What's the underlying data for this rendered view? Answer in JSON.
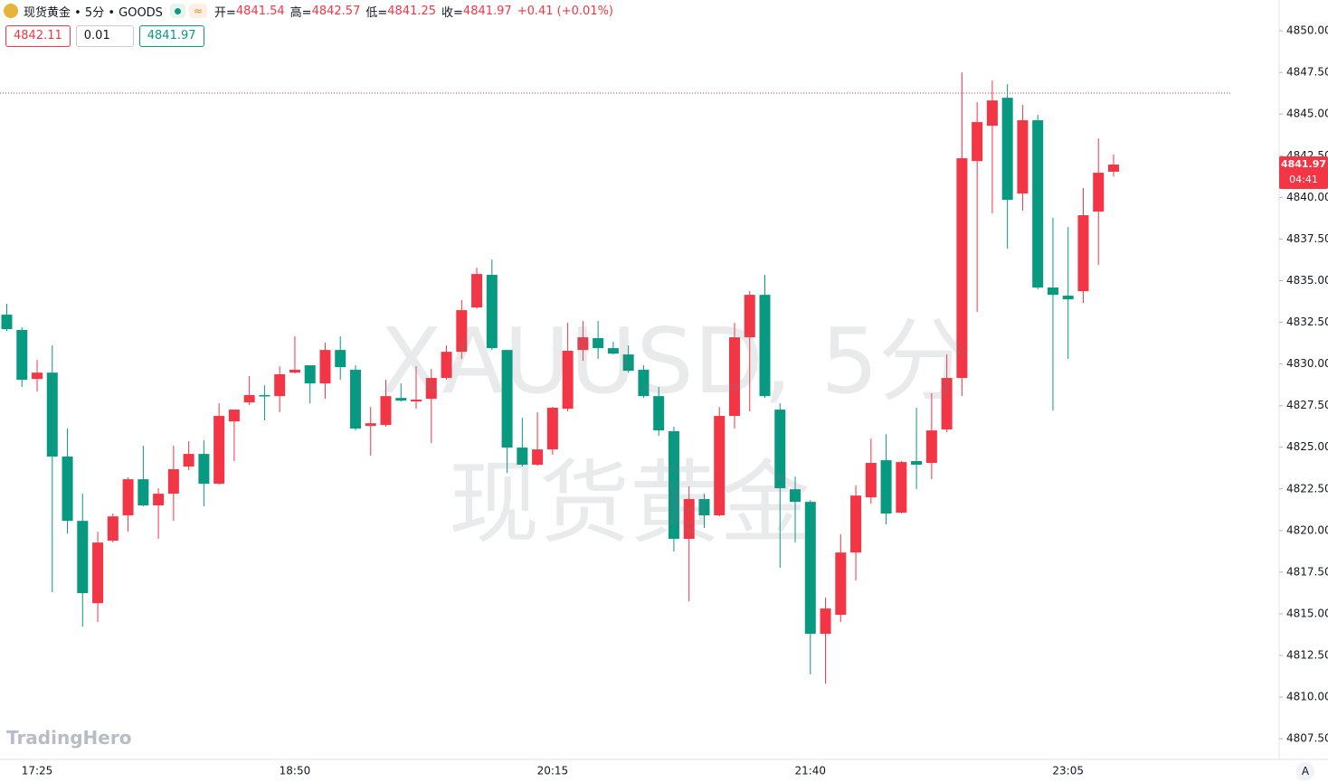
{
  "chart_data": {
    "type": "candlestick",
    "title": "现货黄金 • 5分 • GOODS",
    "ohlc_labels": [
      "开=",
      "高=",
      "低=",
      "收="
    ],
    "change": "+0.41 (+0.01%)",
    "trade_panel": {
      "sell": "4842.11",
      "spread": "0.01",
      "buy": "4841.97"
    },
    "countdown": "04:41",
    "watermark": [
      "XAUUSD, 5分",
      "现货黄金"
    ],
    "logo": "TradingHero",
    "button": "A",
    "up_color": "#f23645",
    "down_color": "#089981",
    "price_line": 4846.26,
    "categories": [
      null,
      null,
      "17:25",
      null,
      null,
      null,
      null,
      null,
      null,
      null,
      null,
      null,
      null,
      null,
      null,
      null,
      null,
      null,
      null,
      "18:50",
      null,
      null,
      null,
      null,
      null,
      null,
      null,
      null,
      null,
      null,
      null,
      null,
      null,
      null,
      null,
      null,
      "20:15",
      null,
      null,
      null,
      null,
      null,
      null,
      null,
      null,
      null,
      null,
      null,
      null,
      null,
      null,
      null,
      null,
      "21:40",
      null,
      null,
      null,
      null,
      null,
      null,
      null,
      null,
      null,
      null,
      null,
      null,
      null,
      null,
      null,
      null,
      "23:05",
      null,
      null,
      null
    ],
    "open": [
      4832.96,
      4832.04,
      4829.1,
      4829.48,
      4824.44,
      4820.58,
      4815.64,
      4819.39,
      4820.91,
      4823.08,
      4821.51,
      4822.21,
      4823.84,
      4824.6,
      4822.81,
      4826.55,
      4827.69,
      4828.13,
      4828.07,
      4829.48,
      4829.92,
      4828.83,
      4830.84,
      4829.65,
      4826.28,
      4826.34,
      4827.96,
      4827.75,
      4827.91,
      4829.16,
      4830.73,
      4833.39,
      4835.35,
      4830.84,
      4824.98,
      4823.95,
      4824.87,
      4827.31,
      4830.84,
      4831.55,
      4830.95,
      4830.57,
      4829.65,
      4828.07,
      4825.96,
      4819.5,
      4821.89,
      4820.91,
      4826.88,
      4831.6,
      4834.15,
      4827.26,
      4822.48,
      4821.72,
      4813.8,
      4814.94,
      4818.68,
      4821.99,
      4824.22,
      4821.07,
      4824.17,
      4824.06,
      4826.07,
      4829.16,
      4842.18,
      4844.3,
      4845.98,
      4840.23,
      4844.63,
      4834.59,
      4834.1,
      4834.37,
      4839.15,
      4841.54
    ],
    "high": [
      4833.61,
      4832.2,
      4830.24,
      4831.11,
      4826.12,
      4822.21,
      4819.93,
      4821.02,
      4823.19,
      4825.09,
      4822.54,
      4825.09,
      4825.36,
      4825.41,
      4827.64,
      4827.26,
      4829.27,
      4828.72,
      4829.86,
      4831.66,
      4829.92,
      4831.28,
      4831.66,
      4829.92,
      4827.42,
      4829.05,
      4828.83,
      4829.86,
      4829.7,
      4831.11,
      4833.83,
      4835.78,
      4836.27,
      4830.84,
      4826.77,
      4827.1,
      4827.42,
      4832.47,
      4832.58,
      4832.58,
      4831.33,
      4831.11,
      4829.92,
      4828.62,
      4826.23,
      4822.65,
      4822.21,
      4827.42,
      4832.47,
      4834.37,
      4835.35,
      4827.64,
      4823.24,
      4821.83,
      4815.97,
      4819.77,
      4822.7,
      4825.52,
      4825.79,
      4824.17,
      4827.37,
      4828.24,
      4830.57,
      4847.5,
      4845.71,
      4847.01,
      4846.8,
      4845.55,
      4844.95,
      4838.77,
      4838.22,
      4840.56,
      4843.54,
      4842.57
    ],
    "low": [
      4831.98,
      4828.62,
      4828.34,
      4816.3,
      4819.82,
      4814.23,
      4814.5,
      4819.28,
      4819.93,
      4821.45,
      4819.5,
      4820.58,
      4823.62,
      4821.45,
      4822.75,
      4824.17,
      4827.53,
      4826.61,
      4827.1,
      4829.43,
      4827.64,
      4827.91,
      4829.05,
      4826.01,
      4824.49,
      4826.23,
      4827.75,
      4827.31,
      4825.25,
      4829.05,
      4830.3,
      4833.34,
      4830.84,
      4823.46,
      4823.84,
      4823.89,
      4824.55,
      4827.15,
      4830.19,
      4830.3,
      4830.57,
      4829.48,
      4827.96,
      4825.69,
      4818.74,
      4815.75,
      4820.15,
      4820.85,
      4826.12,
      4827.15,
      4827.96,
      4817.76,
      4819.28,
      4811.36,
      4810.81,
      4814.5,
      4817.0,
      4821.61,
      4820.37,
      4821.02,
      4822.48,
      4823.08,
      4825.9,
      4828.07,
      4833.12,
      4839.04,
      4836.92,
      4839.2,
      4834.48,
      4827.2,
      4830.3,
      4833.66,
      4835.94,
      4841.25
    ],
    "close": [
      4832.09,
      4829.05,
      4829.48,
      4824.44,
      4820.58,
      4816.24,
      4819.28,
      4820.85,
      4823.08,
      4821.51,
      4822.21,
      4823.68,
      4824.6,
      4822.81,
      4826.88,
      4827.26,
      4828.13,
      4828.07,
      4829.38,
      4829.65,
      4828.83,
      4830.84,
      4829.81,
      4826.12,
      4826.44,
      4828.07,
      4827.8,
      4827.86,
      4829.16,
      4830.73,
      4833.23,
      4835.4,
      4830.95,
      4824.98,
      4823.95,
      4824.87,
      4827.37,
      4830.79,
      4831.6,
      4830.95,
      4830.62,
      4829.59,
      4828.07,
      4826.01,
      4819.5,
      4821.89,
      4820.91,
      4826.88,
      4831.6,
      4834.15,
      4828.07,
      4822.54,
      4821.72,
      4813.8,
      4815.32,
      4818.68,
      4822.1,
      4824.06,
      4821.02,
      4824.11,
      4823.95,
      4826.01,
      4829.16,
      4842.35,
      4844.52,
      4845.82,
      4839.85,
      4844.63,
      4834.59,
      4834.15,
      4833.88,
      4838.93,
      4841.48,
      4841.97
    ],
    "ylim": [
      4806.26,
      4851.85
    ],
    "yticks": [
      {
        "value": 4807.5,
        "label": "4807.50"
      },
      {
        "value": 4810,
        "label": "4810.00"
      },
      {
        "value": 4812.5,
        "label": "4812.50"
      },
      {
        "value": 4815,
        "label": "4815.00"
      },
      {
        "value": 4817.5,
        "label": "4817.50"
      },
      {
        "value": 4820,
        "label": "4820.00"
      },
      {
        "value": 4822.5,
        "label": "4822.50"
      },
      {
        "value": 4825,
        "label": "4825.00"
      },
      {
        "value": 4827.5,
        "label": "4827.50"
      },
      {
        "value": 4830,
        "label": "4830.00"
      },
      {
        "value": 4832.5,
        "label": "4832.50"
      },
      {
        "value": 4835,
        "label": "4835.00"
      },
      {
        "value": 4837.5,
        "label": "4837.50"
      },
      {
        "value": 4840,
        "label": "4840.00"
      },
      {
        "value": 4842.5,
        "label": "4842.50"
      },
      {
        "value": 4845,
        "label": "4845.00"
      },
      {
        "value": 4847.5,
        "label": "4847.50"
      },
      {
        "value": 4850,
        "label": "4850.00"
      }
    ],
    "grid": false
  }
}
